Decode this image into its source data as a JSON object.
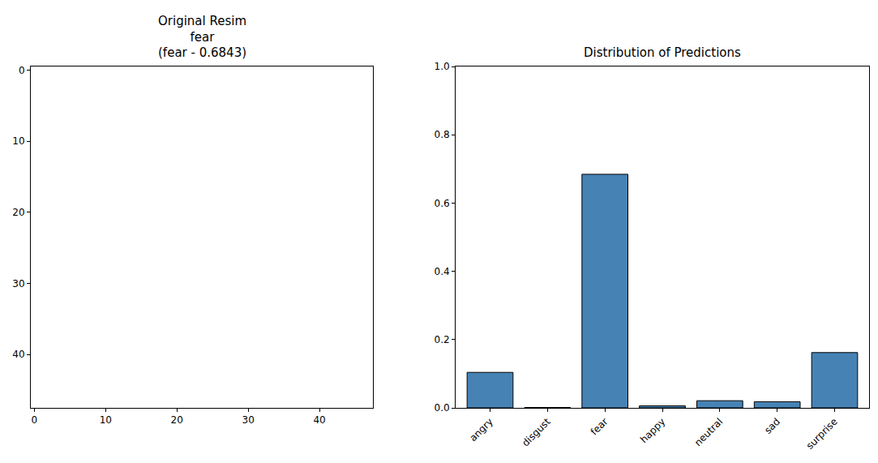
{
  "chart_data": [
    {
      "type": "image",
      "title": "Original Resim\nfear\n(fear - 0.6843)",
      "xlim": [
        -0.5,
        47.5
      ],
      "ylim": [
        47.5,
        -0.5
      ],
      "xticks": [
        0,
        10,
        20,
        30,
        40
      ],
      "yticks": [
        0,
        10,
        20,
        30,
        40
      ],
      "grid": false
    },
    {
      "type": "bar",
      "title": "Distribution of Predictions",
      "categories": [
        "angry",
        "disgust",
        "fear",
        "happy",
        "neutral",
        "sad",
        "surprise"
      ],
      "values": [
        0.104,
        0.001,
        0.6843,
        0.006,
        0.021,
        0.018,
        0.162
      ],
      "color": "#4682b4",
      "ylim": [
        0,
        1
      ],
      "yticks": [
        {
          "value": 0,
          "label": "0.0"
        },
        {
          "value": 0.2,
          "label": "0.2"
        },
        {
          "value": 0.4,
          "label": "0.4"
        },
        {
          "value": 0.6,
          "label": "0.6"
        },
        {
          "value": 0.8,
          "label": "0.8"
        },
        {
          "value": 1,
          "label": "1.0"
        }
      ],
      "grid": false
    }
  ]
}
